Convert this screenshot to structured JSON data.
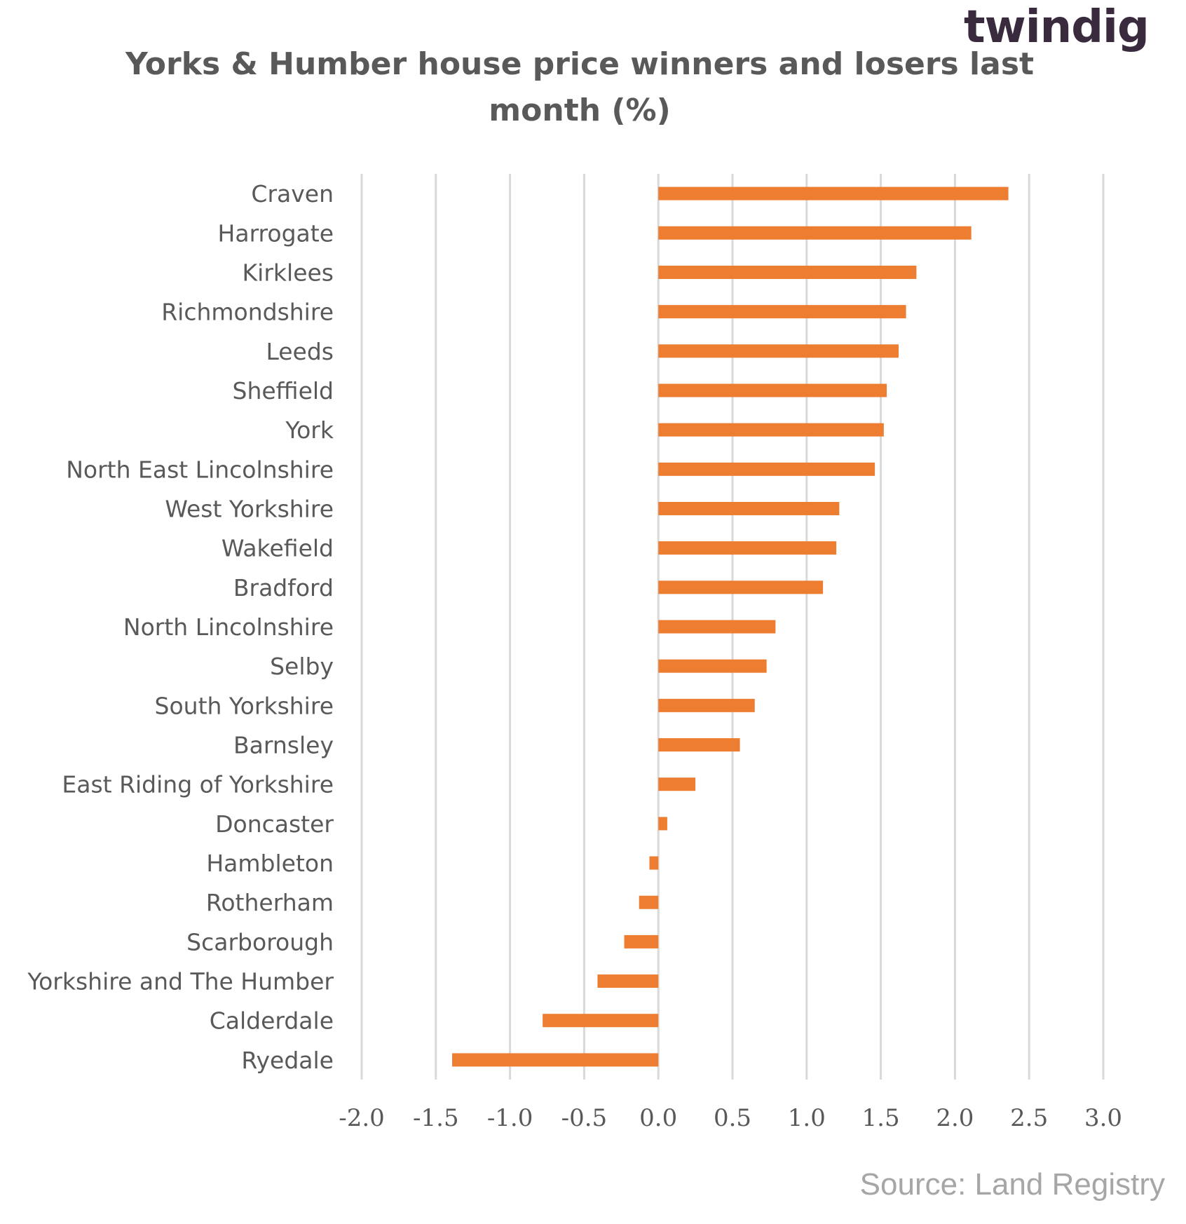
{
  "logo": {
    "text": "twindig",
    "accent_color": "#f28c28"
  },
  "source": "Source: Land Registry",
  "chart_data": {
    "type": "bar",
    "orientation": "horizontal",
    "title": "Yorks & Humber house price winners and losers last month (%)",
    "title_lines": [
      "Yorks & Humber house price winners and losers last",
      "month (%)"
    ],
    "categories": [
      "Craven",
      "Harrogate",
      "Kirklees",
      "Richmondshire",
      "Leeds",
      "Sheffield",
      "York",
      "North East Lincolnshire",
      "West Yorkshire",
      "Wakefield",
      "Bradford",
      "North Lincolnshire",
      "Selby",
      "South Yorkshire",
      "Barnsley",
      "East Riding of Yorkshire",
      "Doncaster",
      "Hambleton",
      "Rotherham",
      "Scarborough",
      "Yorkshire and The Humber",
      "Calderdale",
      "Ryedale"
    ],
    "values": [
      2.36,
      2.11,
      1.74,
      1.67,
      1.62,
      1.54,
      1.52,
      1.46,
      1.22,
      1.2,
      1.11,
      0.79,
      0.73,
      0.65,
      0.55,
      0.25,
      0.06,
      -0.06,
      -0.13,
      -0.23,
      -0.41,
      -0.78,
      -1.39
    ],
    "xlim": [
      -2.0,
      3.0
    ],
    "xticks": [
      "-2.0",
      "-1.5",
      "-1.0",
      "-0.5",
      "0.0",
      "0.5",
      "1.0",
      "1.5",
      "2.0",
      "2.5",
      "3.0"
    ],
    "xtick_values": [
      -2.0,
      -1.5,
      -1.0,
      -0.5,
      0.0,
      0.5,
      1.0,
      1.5,
      2.0,
      2.5,
      3.0
    ],
    "bar_color": "#ed7d31",
    "grid": "vertical",
    "legend": "none"
  }
}
